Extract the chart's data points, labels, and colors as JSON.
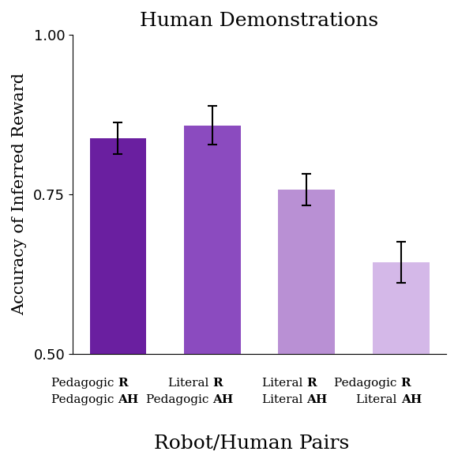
{
  "title": "Human Demonstrations",
  "xlabel": "Robot/Human Pairs",
  "ylabel": "Accuracy of Inferred Reward",
  "ylim": [
    0.5,
    1.0
  ],
  "yticks": [
    0.5,
    0.75,
    1.0
  ],
  "bar_values": [
    0.838,
    0.858,
    0.757,
    0.643
  ],
  "bar_errors": [
    0.025,
    0.03,
    0.025,
    0.032
  ],
  "bar_colors": [
    "#6a1fa0",
    "#8b4bbf",
    "#b990d4",
    "#d4b8e8"
  ],
  "bar_labels": [
    [
      "Pedagogic R",
      "Pedagogic AH"
    ],
    [
      "Literal R",
      "Pedagogic AH"
    ],
    [
      "Literal R",
      "Literal AH"
    ],
    [
      "Pedagogic R",
      "Literal AH"
    ]
  ],
  "bar_width": 0.6,
  "title_fontsize": 18,
  "axis_label_fontsize": 15,
  "tick_fontsize": 13,
  "xtick_label_fontsize": 11,
  "background_color": "#ffffff"
}
